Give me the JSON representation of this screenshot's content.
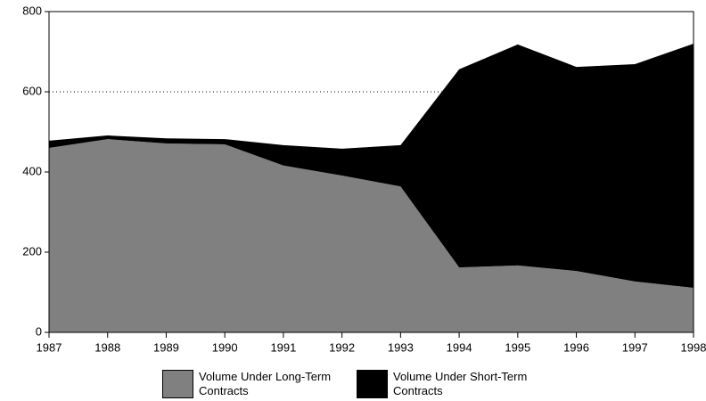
{
  "chart_data": {
    "type": "stacked_area",
    "x": [
      1987,
      1988,
      1989,
      1990,
      1991,
      1992,
      1993,
      1994,
      1995,
      1996,
      1997,
      1998
    ],
    "series": [
      {
        "name": "Volume Under Long-Term Contracts",
        "color": "#808080",
        "values": [
          460,
          482,
          471,
          469,
          416,
          391,
          364,
          162,
          167,
          153,
          127,
          111
        ]
      },
      {
        "name": "Volume Under Short-Term Contracts",
        "color": "#000000",
        "values": [
          18,
          9,
          13,
          13,
          51,
          67,
          103,
          494,
          551,
          509,
          542,
          609
        ]
      }
    ],
    "xlim": [
      1987,
      1998
    ],
    "xticks": [
      1987,
      1988,
      1989,
      1990,
      1991,
      1992,
      1993,
      1994,
      1995,
      1996,
      1997,
      1998
    ],
    "ylim": [
      0,
      800
    ],
    "yticks": [
      0,
      200,
      400,
      600,
      800
    ],
    "reference_line": 600,
    "legend": "bottom"
  }
}
